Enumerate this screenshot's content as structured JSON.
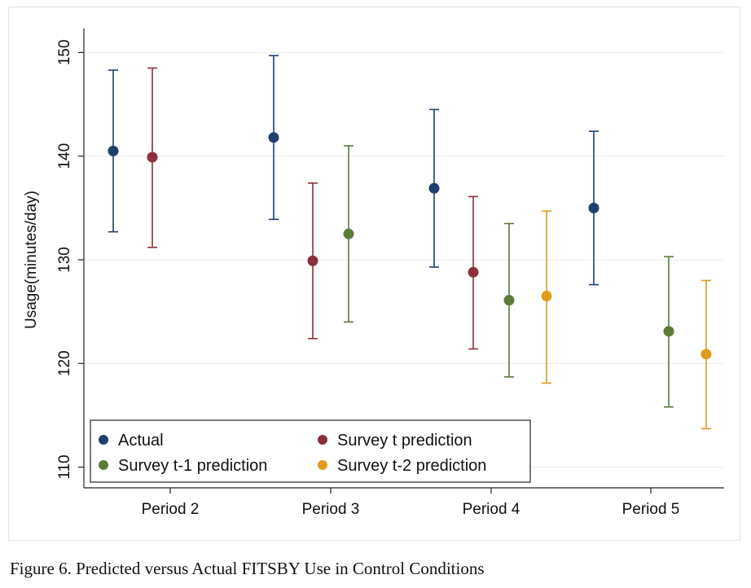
{
  "caption": "Figure 6. Predicted versus Actual FITSBY Use in Control Conditions",
  "chart_data": {
    "type": "scatter",
    "subtype": "point estimates with confidence-interval error bars",
    "title": "",
    "xlabel": "",
    "ylabel": "Usage(minutes/day)",
    "categories": [
      "Period 2",
      "Period 3",
      "Period 4",
      "Period 5"
    ],
    "ylim": [
      108,
      152
    ],
    "yticks": [
      110,
      120,
      130,
      140,
      150
    ],
    "grid": true,
    "legend_position": "bottom-left",
    "series": [
      {
        "name": "Actual",
        "color": "#1f3f6d",
        "points": [
          {
            "category": "Period 2",
            "value": 140.5,
            "low": 132.7,
            "high": 148.3
          },
          {
            "category": "Period 3",
            "value": 141.8,
            "low": 133.9,
            "high": 149.7
          },
          {
            "category": "Period 4",
            "value": 136.9,
            "low": 129.3,
            "high": 144.5
          },
          {
            "category": "Period 5",
            "value": 135.0,
            "low": 127.6,
            "high": 142.4
          }
        ]
      },
      {
        "name": "Survey t prediction",
        "color": "#8c2f3a",
        "points": [
          {
            "category": "Period 2",
            "value": 139.9,
            "low": 131.2,
            "high": 148.5
          },
          {
            "category": "Period 3",
            "value": 129.9,
            "low": 122.4,
            "high": 137.4
          },
          {
            "category": "Period 4",
            "value": 128.8,
            "low": 121.4,
            "high": 136.1
          }
        ]
      },
      {
        "name": "Survey t-1 prediction",
        "color": "#5c7a3a",
        "points": [
          {
            "category": "Period 3",
            "value": 132.5,
            "low": 124.0,
            "high": 141.0
          },
          {
            "category": "Period 4",
            "value": 126.1,
            "low": 118.7,
            "high": 133.5
          },
          {
            "category": "Period 5",
            "value": 123.1,
            "low": 115.8,
            "high": 130.3
          }
        ]
      },
      {
        "name": "Survey t-2 prediction",
        "color": "#e09a1e",
        "points": [
          {
            "category": "Period 4",
            "value": 126.5,
            "low": 118.1,
            "high": 134.7
          },
          {
            "category": "Period 5",
            "value": 120.9,
            "low": 113.7,
            "high": 128.0
          }
        ]
      }
    ]
  }
}
